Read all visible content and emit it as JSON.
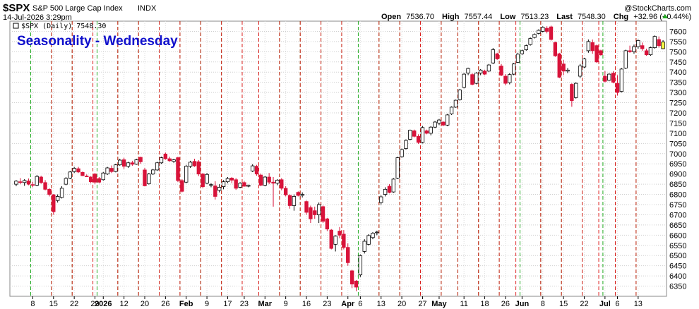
{
  "header": {
    "symbol": "$SPX",
    "name": "S&P 500 Large Cap Index",
    "exchange": "INDX",
    "date": "14-Jul-2026 3:29pm",
    "watermark": "@StockCharts.com",
    "open_label": "Open",
    "open": "7536.70",
    "high_label": "High",
    "high": "7557.44",
    "low_label": "Low",
    "low": "7513.23",
    "last_label": "Last",
    "last": "7548.30",
    "chg_label": "Chg",
    "chg": "+32.96 (+0.44%)",
    "legend": "$SPX (Daily) 7548.30"
  },
  "colors": {
    "up_candle": "#ffffff",
    "down_candle": "#d8133a",
    "monday_line": "#22aa22",
    "friday_line": "#dd2222",
    "title": "#1010cc",
    "last_candle": "#ffff44"
  },
  "chart_data": {
    "type": "candlestick",
    "title": "Seasonality - Wednesday",
    "ylim": [
      6300,
      7650
    ],
    "y_ticks": [
      6350,
      6400,
      6450,
      6500,
      6550,
      6600,
      6650,
      6700,
      6750,
      6800,
      6850,
      6900,
      6950,
      7000,
      7050,
      7100,
      7150,
      7200,
      7250,
      7300,
      7350,
      7400,
      7450,
      7500,
      7550,
      7600
    ],
    "x_tick_labels": [
      {
        "label": "8",
        "day": 4
      },
      {
        "label": "15",
        "day": 9
      },
      {
        "label": "22",
        "day": 14
      },
      {
        "label": "29",
        "day": 19
      },
      {
        "label": "2026",
        "day": 21,
        "bold": true
      },
      {
        "label": "12",
        "day": 26
      },
      {
        "label": "20",
        "day": 31
      },
      {
        "label": "26",
        "day": 36
      },
      {
        "label": "Feb",
        "day": 41,
        "bold": true
      },
      {
        "label": "9",
        "day": 46
      },
      {
        "label": "17",
        "day": 51
      },
      {
        "label": "23",
        "day": 55
      },
      {
        "label": "Mar",
        "day": 60,
        "bold": true
      },
      {
        "label": "9",
        "day": 65
      },
      {
        "label": "16",
        "day": 70
      },
      {
        "label": "23",
        "day": 75
      },
      {
        "label": "Apr",
        "day": 80,
        "bold": true
      },
      {
        "label": "6",
        "day": 83
      },
      {
        "label": "13",
        "day": 88
      },
      {
        "label": "20",
        "day": 93
      },
      {
        "label": "27",
        "day": 98
      },
      {
        "label": "May",
        "day": 102,
        "bold": true
      },
      {
        "label": "11",
        "day": 108
      },
      {
        "label": "18",
        "day": 113
      },
      {
        "label": "26",
        "day": 118
      },
      {
        "label": "Jun",
        "day": 122,
        "bold": true
      },
      {
        "label": "8",
        "day": 127
      },
      {
        "label": "15",
        "day": 132
      },
      {
        "label": "22",
        "day": 137
      },
      {
        "label": "Jul",
        "day": 142,
        "bold": true
      },
      {
        "label": "6",
        "day": 145
      },
      {
        "label": "13",
        "day": 150
      }
    ],
    "candles": [
      {
        "o": 6850,
        "h": 6870,
        "l": 6840,
        "c": 6865
      },
      {
        "o": 6862,
        "h": 6880,
        "l": 6850,
        "c": 6860
      },
      {
        "o": 6858,
        "h": 6875,
        "l": 6842,
        "c": 6868
      },
      {
        "o": 6866,
        "h": 6878,
        "l": 6845,
        "c": 6850
      },
      {
        "o": 6848,
        "h": 6862,
        "l": 6835,
        "c": 6845
      },
      {
        "o": 6845,
        "h": 6895,
        "l": 6840,
        "c": 6888
      },
      {
        "o": 6885,
        "h": 6892,
        "l": 6852,
        "c": 6858
      },
      {
        "o": 6858,
        "h": 6870,
        "l": 6820,
        "c": 6825
      },
      {
        "o": 6825,
        "h": 6830,
        "l": 6790,
        "c": 6800
      },
      {
        "o": 6798,
        "h": 6802,
        "l": 6700,
        "c": 6715
      },
      {
        "o": 6770,
        "h": 6800,
        "l": 6760,
        "c": 6790
      },
      {
        "o": 6785,
        "h": 6840,
        "l": 6780,
        "c": 6830
      },
      {
        "o": 6850,
        "h": 6885,
        "l": 6845,
        "c": 6878
      },
      {
        "o": 6880,
        "h": 6915,
        "l": 6875,
        "c": 6910
      },
      {
        "o": 6912,
        "h": 6935,
        "l": 6905,
        "c": 6928
      },
      {
        "o": 6926,
        "h": 6935,
        "l": 6905,
        "c": 6910
      },
      {
        "o": 6908,
        "h": 6912,
        "l": 6890,
        "c": 6892
      },
      {
        "o": 6890,
        "h": 6898,
        "l": 6885,
        "c": 6888
      },
      {
        "o": 6885,
        "h": 6890,
        "l": 6855,
        "c": 6862
      },
      {
        "o": 6900,
        "h": 6905,
        "l": 6850,
        "c": 6860
      },
      {
        "o": 6878,
        "h": 6885,
        "l": 6855,
        "c": 6860
      },
      {
        "o": 6872,
        "h": 6910,
        "l": 6868,
        "c": 6905
      },
      {
        "o": 6900,
        "h": 6935,
        "l": 6895,
        "c": 6930
      },
      {
        "o": 6928,
        "h": 6942,
        "l": 6905,
        "c": 6912
      },
      {
        "o": 6912,
        "h": 6950,
        "l": 6908,
        "c": 6945
      },
      {
        "o": 6945,
        "h": 6975,
        "l": 6940,
        "c": 6968
      },
      {
        "o": 6970,
        "h": 6980,
        "l": 6925,
        "c": 6938
      },
      {
        "o": 6938,
        "h": 6960,
        "l": 6930,
        "c": 6955
      },
      {
        "o": 6955,
        "h": 6965,
        "l": 6940,
        "c": 6948
      },
      {
        "o": 6948,
        "h": 6975,
        "l": 6945,
        "c": 6970
      },
      {
        "o": 6982,
        "h": 6985,
        "l": 6950,
        "c": 6960
      },
      {
        "o": 6920,
        "h": 6930,
        "l": 6840,
        "c": 6842
      },
      {
        "o": 6852,
        "h": 6905,
        "l": 6848,
        "c": 6900
      },
      {
        "o": 6900,
        "h": 6925,
        "l": 6895,
        "c": 6920
      },
      {
        "o": 6920,
        "h": 6960,
        "l": 6915,
        "c": 6955
      },
      {
        "o": 6955,
        "h": 6985,
        "l": 6950,
        "c": 6980
      },
      {
        "o": 6998,
        "h": 7005,
        "l": 6970,
        "c": 6975
      },
      {
        "o": 6975,
        "h": 6985,
        "l": 6960,
        "c": 6965
      },
      {
        "o": 6962,
        "h": 6975,
        "l": 6955,
        "c": 6970
      },
      {
        "o": 6980,
        "h": 6985,
        "l": 6860,
        "c": 6868
      },
      {
        "o": 6868,
        "h": 6875,
        "l": 6810,
        "c": 6815
      },
      {
        "o": 6860,
        "h": 6945,
        "l": 6855,
        "c": 6938
      },
      {
        "o": 6938,
        "h": 6965,
        "l": 6930,
        "c": 6958
      },
      {
        "o": 6962,
        "h": 6975,
        "l": 6935,
        "c": 6940
      },
      {
        "o": 6960,
        "h": 6968,
        "l": 6890,
        "c": 6900
      },
      {
        "o": 6900,
        "h": 6905,
        "l": 6830,
        "c": 6838
      },
      {
        "o": 6855,
        "h": 6905,
        "l": 6850,
        "c": 6898
      },
      {
        "o": 6845,
        "h": 6855,
        "l": 6835,
        "c": 6848
      },
      {
        "o": 6842,
        "h": 6865,
        "l": 6775,
        "c": 6790
      },
      {
        "o": 6820,
        "h": 6850,
        "l": 6810,
        "c": 6835
      },
      {
        "o": 6838,
        "h": 6870,
        "l": 6825,
        "c": 6862
      },
      {
        "o": 6862,
        "h": 6885,
        "l": 6855,
        "c": 6878
      },
      {
        "o": 6880,
        "h": 6885,
        "l": 6855,
        "c": 6870
      },
      {
        "o": 6872,
        "h": 6880,
        "l": 6822,
        "c": 6830
      },
      {
        "o": 6835,
        "h": 6860,
        "l": 6830,
        "c": 6855
      },
      {
        "o": 6858,
        "h": 6865,
        "l": 6838,
        "c": 6840
      },
      {
        "o": 6840,
        "h": 6848,
        "l": 6835,
        "c": 6845
      },
      {
        "o": 6915,
        "h": 6948,
        "l": 6910,
        "c": 6940
      },
      {
        "o": 6938,
        "h": 6945,
        "l": 6892,
        "c": 6900
      },
      {
        "o": 6895,
        "h": 6902,
        "l": 6840,
        "c": 6845
      },
      {
        "o": 6845,
        "h": 6890,
        "l": 6840,
        "c": 6885
      },
      {
        "o": 6885,
        "h": 6905,
        "l": 6850,
        "c": 6860
      },
      {
        "o": 6860,
        "h": 6885,
        "l": 6740,
        "c": 6855
      },
      {
        "o": 6855,
        "h": 6875,
        "l": 6845,
        "c": 6870
      },
      {
        "o": 6872,
        "h": 6880,
        "l": 6820,
        "c": 6830
      },
      {
        "o": 6830,
        "h": 6840,
        "l": 6790,
        "c": 6798
      },
      {
        "o": 6795,
        "h": 6800,
        "l": 6730,
        "c": 6745
      },
      {
        "o": 6745,
        "h": 6800,
        "l": 6720,
        "c": 6790
      },
      {
        "o": 6810,
        "h": 6815,
        "l": 6790,
        "c": 6795
      },
      {
        "o": 6795,
        "h": 6810,
        "l": 6785,
        "c": 6800
      },
      {
        "o": 6765,
        "h": 6770,
        "l": 6700,
        "c": 6712
      },
      {
        "o": 6735,
        "h": 6745,
        "l": 6660,
        "c": 6680
      },
      {
        "o": 6720,
        "h": 6740,
        "l": 6680,
        "c": 6700
      },
      {
        "o": 6700,
        "h": 6760,
        "l": 6660,
        "c": 6750
      },
      {
        "o": 6740,
        "h": 6745,
        "l": 6660,
        "c": 6668
      },
      {
        "o": 6680,
        "h": 6685,
        "l": 6620,
        "c": 6630
      },
      {
        "o": 6625,
        "h": 6630,
        "l": 6530,
        "c": 6535
      },
      {
        "o": 6555,
        "h": 6600,
        "l": 6520,
        "c": 6595
      },
      {
        "o": 6620,
        "h": 6640,
        "l": 6585,
        "c": 6600
      },
      {
        "o": 6605,
        "h": 6625,
        "l": 6530,
        "c": 6540
      },
      {
        "o": 6540,
        "h": 6560,
        "l": 6450,
        "c": 6465
      },
      {
        "o": 6425,
        "h": 6430,
        "l": 6340,
        "c": 6360
      },
      {
        "o": 6375,
        "h": 6380,
        "l": 6325,
        "c": 6345
      },
      {
        "o": 6405,
        "h": 6505,
        "l": 6395,
        "c": 6500
      },
      {
        "o": 6520,
        "h": 6580,
        "l": 6510,
        "c": 6570
      },
      {
        "o": 6555,
        "h": 6605,
        "l": 6550,
        "c": 6598
      },
      {
        "o": 6588,
        "h": 6615,
        "l": 6580,
        "c": 6610
      },
      {
        "o": 6612,
        "h": 6622,
        "l": 6600,
        "c": 6615
      },
      {
        "o": 6760,
        "h": 6795,
        "l": 6750,
        "c": 6788
      },
      {
        "o": 6800,
        "h": 6835,
        "l": 6790,
        "c": 6825
      },
      {
        "o": 6840,
        "h": 6850,
        "l": 6805,
        "c": 6810
      },
      {
        "o": 6812,
        "h": 6880,
        "l": 6808,
        "c": 6875
      },
      {
        "o": 6880,
        "h": 6985,
        "l": 6875,
        "c": 6980
      },
      {
        "o": 6985,
        "h": 7025,
        "l": 6980,
        "c": 7020
      },
      {
        "o": 7025,
        "h": 7070,
        "l": 7020,
        "c": 7065
      },
      {
        "o": 7070,
        "h": 7118,
        "l": 7065,
        "c": 7115
      },
      {
        "o": 7112,
        "h": 7118,
        "l": 7080,
        "c": 7085
      },
      {
        "o": 7085,
        "h": 7095,
        "l": 7048,
        "c": 7055
      },
      {
        "o": 7055,
        "h": 7135,
        "l": 7050,
        "c": 7128
      },
      {
        "o": 7112,
        "h": 7118,
        "l": 7095,
        "c": 7100
      },
      {
        "o": 7100,
        "h": 7135,
        "l": 7090,
        "c": 7130
      },
      {
        "o": 7130,
        "h": 7160,
        "l": 7125,
        "c": 7155
      },
      {
        "o": 7150,
        "h": 7170,
        "l": 7140,
        "c": 7165
      },
      {
        "o": 7155,
        "h": 7158,
        "l": 7135,
        "c": 7140
      },
      {
        "o": 7140,
        "h": 7195,
        "l": 7135,
        "c": 7190
      },
      {
        "o": 7195,
        "h": 7232,
        "l": 7190,
        "c": 7228
      },
      {
        "o": 7228,
        "h": 7265,
        "l": 7225,
        "c": 7262
      },
      {
        "o": 7265,
        "h": 7318,
        "l": 7260,
        "c": 7312
      },
      {
        "o": 7325,
        "h": 7395,
        "l": 7320,
        "c": 7390
      },
      {
        "o": 7395,
        "h": 7422,
        "l": 7385,
        "c": 7418
      },
      {
        "o": 7388,
        "h": 7395,
        "l": 7335,
        "c": 7340
      },
      {
        "o": 7345,
        "h": 7400,
        "l": 7340,
        "c": 7395
      },
      {
        "o": 7395,
        "h": 7415,
        "l": 7385,
        "c": 7410
      },
      {
        "o": 7405,
        "h": 7412,
        "l": 7385,
        "c": 7390
      },
      {
        "o": 7405,
        "h": 7440,
        "l": 7400,
        "c": 7435
      },
      {
        "o": 7445,
        "h": 7518,
        "l": 7440,
        "c": 7510
      },
      {
        "o": 7490,
        "h": 7495,
        "l": 7460,
        "c": 7465
      },
      {
        "o": 7430,
        "h": 7440,
        "l": 7380,
        "c": 7385
      },
      {
        "o": 7380,
        "h": 7390,
        "l": 7335,
        "c": 7345
      },
      {
        "o": 7348,
        "h": 7395,
        "l": 7340,
        "c": 7388
      },
      {
        "o": 7390,
        "h": 7445,
        "l": 7385,
        "c": 7440
      },
      {
        "o": 7448,
        "h": 7495,
        "l": 7445,
        "c": 7488
      },
      {
        "o": 7490,
        "h": 7510,
        "l": 7485,
        "c": 7505
      },
      {
        "o": 7510,
        "h": 7535,
        "l": 7505,
        "c": 7530
      },
      {
        "o": 7535,
        "h": 7570,
        "l": 7530,
        "c": 7565
      },
      {
        "o": 7570,
        "h": 7590,
        "l": 7565,
        "c": 7585
      },
      {
        "o": 7590,
        "h": 7610,
        "l": 7585,
        "c": 7605
      },
      {
        "o": 7600,
        "h": 7625,
        "l": 7595,
        "c": 7620
      },
      {
        "o": 7615,
        "h": 7625,
        "l": 7590,
        "c": 7600
      },
      {
        "o": 7622,
        "h": 7628,
        "l": 7555,
        "c": 7560
      },
      {
        "o": 7545,
        "h": 7550,
        "l": 7475,
        "c": 7480
      },
      {
        "o": 7490,
        "h": 7495,
        "l": 7370,
        "c": 7375
      },
      {
        "o": 7440,
        "h": 7460,
        "l": 7385,
        "c": 7405
      },
      {
        "o": 7405,
        "h": 7420,
        "l": 7395,
        "c": 7410
      },
      {
        "o": 7340,
        "h": 7345,
        "l": 7230,
        "c": 7260
      },
      {
        "o": 7275,
        "h": 7350,
        "l": 7270,
        "c": 7345
      },
      {
        "o": 7380,
        "h": 7440,
        "l": 7370,
        "c": 7430
      },
      {
        "o": 7425,
        "h": 7470,
        "l": 7420,
        "c": 7465
      },
      {
        "o": 7505,
        "h": 7560,
        "l": 7495,
        "c": 7550
      },
      {
        "o": 7545,
        "h": 7560,
        "l": 7490,
        "c": 7505
      },
      {
        "o": 7530,
        "h": 7535,
        "l": 7445,
        "c": 7450
      },
      {
        "o": 7505,
        "h": 7510,
        "l": 7480,
        "c": 7485
      },
      {
        "o": 7380,
        "h": 7405,
        "l": 7350,
        "c": 7355
      },
      {
        "o": 7360,
        "h": 7395,
        "l": 7355,
        "c": 7390
      },
      {
        "o": 7395,
        "h": 7405,
        "l": 7345,
        "c": 7350
      },
      {
        "o": 7345,
        "h": 7385,
        "l": 7285,
        "c": 7300
      },
      {
        "o": 7305,
        "h": 7420,
        "l": 7300,
        "c": 7415
      },
      {
        "o": 7420,
        "h": 7510,
        "l": 7415,
        "c": 7505
      },
      {
        "o": 7505,
        "h": 7530,
        "l": 7495,
        "c": 7500
      },
      {
        "o": 7500,
        "h": 7535,
        "l": 7490,
        "c": 7525
      },
      {
        "o": 7525,
        "h": 7560,
        "l": 7515,
        "c": 7555
      },
      {
        "o": 7530,
        "h": 7545,
        "l": 7505,
        "c": 7515
      },
      {
        "o": 7505,
        "h": 7515,
        "l": 7480,
        "c": 7485
      },
      {
        "o": 7485,
        "h": 7525,
        "l": 7480,
        "c": 7520
      },
      {
        "o": 7520,
        "h": 7580,
        "l": 7515,
        "c": 7575
      },
      {
        "o": 7560,
        "h": 7575,
        "l": 7520,
        "c": 7530
      },
      {
        "o": 7515,
        "h": 7557,
        "l": 7513,
        "c": 7548
      }
    ],
    "monday_days": [
      4,
      9,
      14,
      20,
      25,
      30,
      35,
      40,
      45,
      50,
      55,
      59,
      64,
      69,
      74,
      79,
      83,
      88,
      93,
      98,
      103,
      107,
      112,
      117,
      122,
      127,
      132,
      137,
      142,
      145,
      150
    ],
    "friday_days": [
      8,
      13,
      18,
      24,
      29,
      34,
      39,
      44,
      49,
      54,
      58,
      63,
      68,
      73,
      78,
      87,
      92,
      97,
      102,
      106,
      111,
      116,
      120,
      126,
      131,
      136,
      140,
      144,
      149
    ]
  }
}
